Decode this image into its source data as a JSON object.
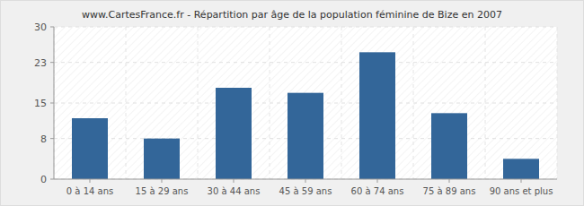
{
  "chart_data": {
    "type": "bar",
    "title": "www.CartesFrance.fr - Répartition par âge de la population féminine de Bize en 2007",
    "categories": [
      "0 à 14 ans",
      "15 à 29 ans",
      "30 à 44 ans",
      "45 à 59 ans",
      "60 à 74 ans",
      "75 à 89 ans",
      "90 ans et plus"
    ],
    "values": [
      12,
      8,
      18,
      17,
      25,
      13,
      4
    ],
    "color": "#336699",
    "ylim": [
      0,
      30
    ],
    "yticks": [
      0,
      8,
      15,
      23,
      30
    ],
    "grid": true
  }
}
